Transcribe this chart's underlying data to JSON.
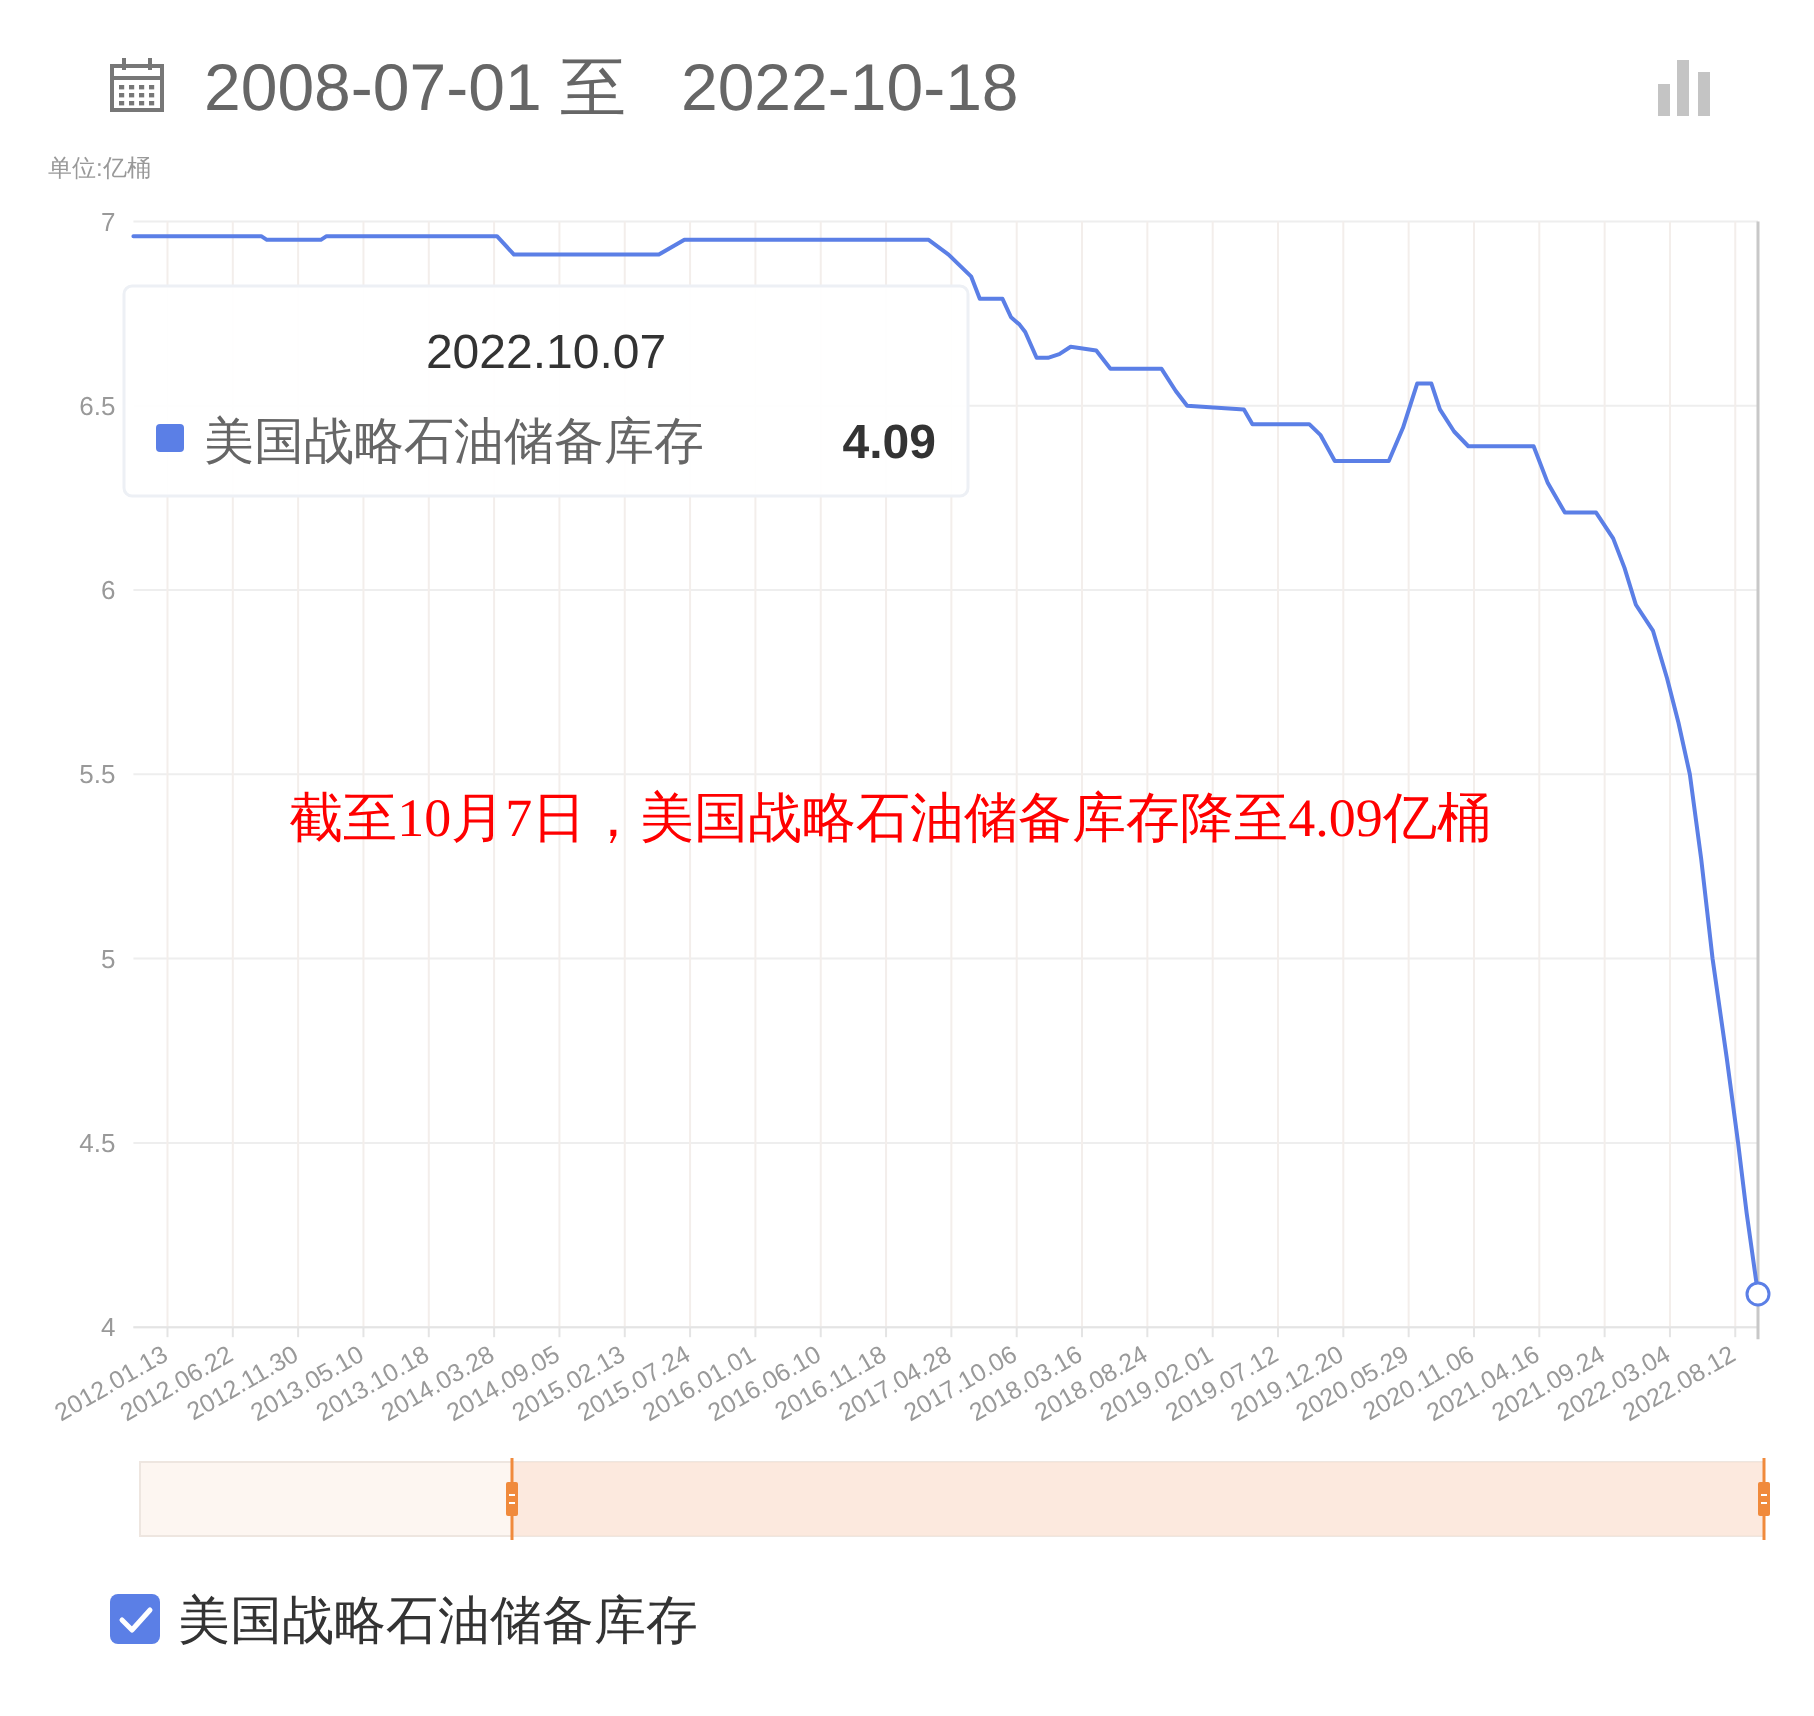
{
  "chart_data": {
    "type": "line",
    "title": "2008-07-01 至   2022-10-18",
    "ylabel": "单位:亿桶",
    "annotations": [
      "2022.10.07",
      "美国战略石油储备库存",
      "4.09",
      "截至10月7日，美国战略石油储备库存降至4.09亿桶"
    ],
    "x": [
      "2011-10-21",
      "2012-08-31",
      "2012-09-14",
      "2013-01-25",
      "2013-02-08",
      "2014-04-04",
      "2014-05-16",
      "2015-05-08",
      "2015-07-10",
      "2017-03-03",
      "2017-04-21",
      "2017-05-19",
      "2017-06-16",
      "2017-07-07",
      "2017-09-01",
      "2017-09-22",
      "2017-10-13",
      "2017-10-27",
      "2017-11-24",
      "2017-12-22",
      "2018-01-19",
      "2018-02-16",
      "2018-04-20",
      "2018-05-25",
      "2018-09-28",
      "2018-11-02",
      "2018-11-30",
      "2019-04-19",
      "2019-05-10",
      "2019-09-27",
      "2019-10-25",
      "2019-11-29",
      "2020-04-10",
      "2020-05-15",
      "2020-06-19",
      "2020-07-24",
      "2020-08-14",
      "2020-09-18",
      "2020-10-23",
      "2021-04-02",
      "2021-05-07",
      "2021-06-18",
      "2021-09-03",
      "2021-10-15",
      "2021-11-12",
      "2021-12-10",
      "2022-01-21",
      "2022-02-25",
      "2022-03-25",
      "2022-04-22",
      "2022-05-20",
      "2022-06-17",
      "2022-07-22",
      "2022-08-19",
      "2022-09-09",
      "2022-10-07"
    ],
    "series": [
      {
        "name": "美国战略石油储备库存",
        "color": "#5b7fe6",
        "values": [
          6.96,
          6.96,
          6.95,
          6.95,
          6.96,
          6.96,
          6.91,
          6.91,
          6.95,
          6.95,
          6.91,
          6.88,
          6.85,
          6.79,
          6.79,
          6.74,
          6.72,
          6.7,
          6.63,
          6.63,
          6.64,
          6.66,
          6.65,
          6.6,
          6.6,
          6.54,
          6.5,
          6.49,
          6.45,
          6.45,
          6.42,
          6.35,
          6.35,
          6.44,
          6.56,
          6.56,
          6.49,
          6.43,
          6.39,
          6.39,
          6.29,
          6.21,
          6.21,
          6.14,
          6.06,
          5.96,
          5.89,
          5.76,
          5.64,
          5.5,
          5.27,
          5.0,
          4.73,
          4.5,
          4.31,
          4.09
        ]
      }
    ],
    "xlim": [
      "2011-10-21",
      "2022-10-07"
    ],
    "xticks": [
      {
        "value": "2012-01-13",
        "label": "2012.01.13"
      },
      {
        "value": "2012-06-22",
        "label": "2012.06.22"
      },
      {
        "value": "2012-11-30",
        "label": "2012.11.30"
      },
      {
        "value": "2013-05-10",
        "label": "2013.05.10"
      },
      {
        "value": "2013-10-18",
        "label": "2013.10.18"
      },
      {
        "value": "2014-03-28",
        "label": "2014.03.28"
      },
      {
        "value": "2014-09-05",
        "label": "2014.09.05"
      },
      {
        "value": "2015-02-13",
        "label": "2015.02.13"
      },
      {
        "value": "2015-07-24",
        "label": "2015.07.24"
      },
      {
        "value": "2016-01-01",
        "label": "2016.01.01"
      },
      {
        "value": "2016-06-10",
        "label": "2016.06.10"
      },
      {
        "value": "2016-11-18",
        "label": "2016.11.18"
      },
      {
        "value": "2017-04-28",
        "label": "2017.04.28"
      },
      {
        "value": "2017-10-06",
        "label": "2017.10.06"
      },
      {
        "value": "2018-03-16",
        "label": "2018.03.16"
      },
      {
        "value": "2018-08-24",
        "label": "2018.08.24"
      },
      {
        "value": "2019-02-01",
        "label": "2019.02.01"
      },
      {
        "value": "2019-07-12",
        "label": "2019.07.12"
      },
      {
        "value": "2019-12-20",
        "label": "2019.12.20"
      },
      {
        "value": "2020-05-29",
        "label": "2020.05.29"
      },
      {
        "value": "2020-11-06",
        "label": "2020.11.06"
      },
      {
        "value": "2021-04-16",
        "label": "2021.04.16"
      },
      {
        "value": "2021-09-24",
        "label": "2021.09.24"
      },
      {
        "value": "2022-03-04",
        "label": "2022.03.04"
      },
      {
        "value": "2022-08-12",
        "label": "2022.08.12"
      }
    ],
    "ylim": [
      4,
      7
    ],
    "yticks": [
      4,
      4.5,
      5,
      5.5,
      6,
      6.5,
      7
    ],
    "ref_lines": [
      {
        "axis": "x",
        "value": "2022-10-07",
        "color": "#c8c8c8"
      }
    ],
    "grid": true,
    "legend": "bottom left"
  }
}
